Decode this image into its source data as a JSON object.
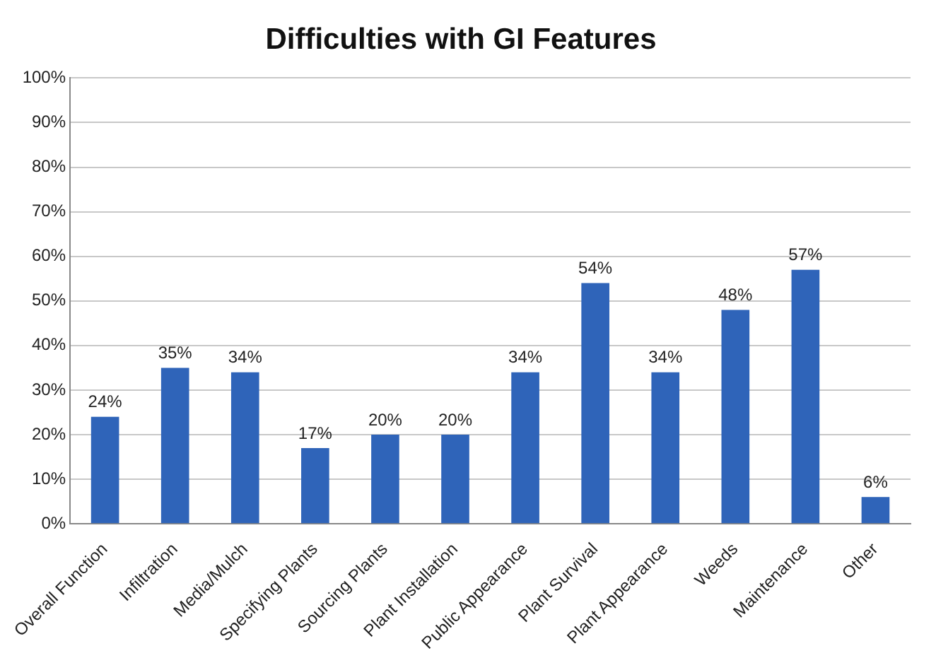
{
  "chart_data": {
    "type": "bar",
    "title": "Difficulties with GI Features",
    "categories": [
      "Overall Function",
      "Infiltration",
      "Media/Mulch",
      "Specifying Plants",
      "Sourcing Plants",
      "Plant Installation",
      "Public Appearance",
      "Plant Survival",
      "Plant Appearance",
      "Weeds",
      "Maintenance",
      "Other"
    ],
    "values": [
      24,
      35,
      34,
      17,
      20,
      20,
      34,
      54,
      34,
      48,
      57,
      6
    ],
    "value_labels": [
      "24%",
      "35%",
      "34%",
      "17%",
      "20%",
      "20%",
      "34%",
      "54%",
      "34%",
      "48%",
      "57%",
      "6%"
    ],
    "color": "#2f64b9",
    "ylim": [
      0,
      100
    ],
    "yticks": [
      {
        "value": 0,
        "label": "0%"
      },
      {
        "value": 10,
        "label": "10%"
      },
      {
        "value": 20,
        "label": "20%"
      },
      {
        "value": 30,
        "label": "30%"
      },
      {
        "value": 40,
        "label": "40%"
      },
      {
        "value": 50,
        "label": "50%"
      },
      {
        "value": 60,
        "label": "60%"
      },
      {
        "value": 70,
        "label": "70%"
      },
      {
        "value": 80,
        "label": "80%"
      },
      {
        "value": 90,
        "label": "90%"
      },
      {
        "value": 100,
        "label": "100%"
      }
    ],
    "grid": "y",
    "legend": false
  }
}
